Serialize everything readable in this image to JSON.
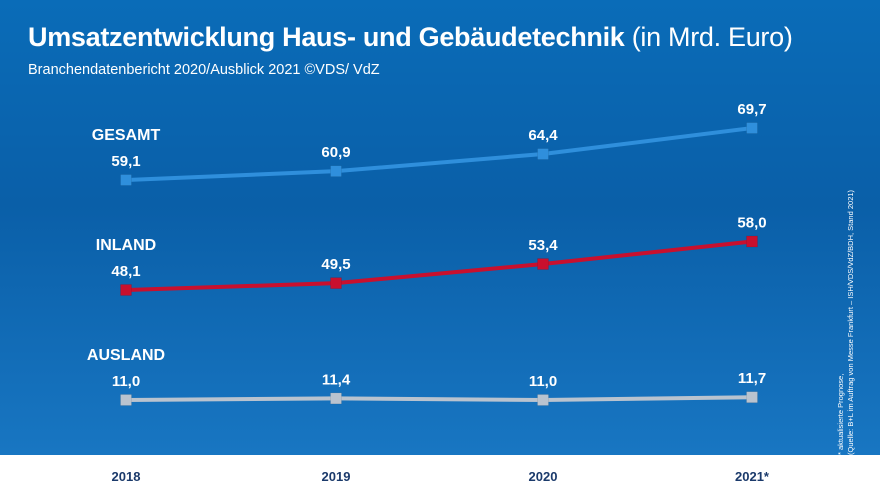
{
  "title": {
    "main": "Umsatzentwicklung Haus- und Gebäudetechnik",
    "unit": "(in Mrd. Euro)"
  },
  "subtitle": "Branchendatenbericht 2020/Ausblick 2021 ©VDS/ VdZ",
  "source_note": {
    "line1": "* aktualisierte Prognose,",
    "line2": "(Quelle: B+L im Auftrag von Messe Frankfurt – ISH/VDS/VdZ/BDH, Stand 2021)"
  },
  "colors": {
    "background": "#0a63ad",
    "gesamt": "#2f8fdc",
    "inland": "#c8102e",
    "ausland": "#b9c3cf",
    "axis_text": "#1b3a6b"
  },
  "chart_data": {
    "type": "line",
    "categories": [
      "2018",
      "2019",
      "2020",
      "2021*"
    ],
    "series": [
      {
        "name": "GESAMT",
        "values": [
          59.1,
          60.9,
          64.4,
          69.7
        ],
        "labels": [
          "59,1",
          "60,9",
          "64,4",
          "69,7"
        ]
      },
      {
        "name": "INLAND",
        "values": [
          48.1,
          49.5,
          53.4,
          58.0
        ],
        "labels": [
          "48,1",
          "49,5",
          "53,4",
          "58,0"
        ]
      },
      {
        "name": "AUSLAND",
        "values": [
          11.0,
          11.4,
          11.0,
          11.7
        ],
        "labels": [
          "11,0",
          "11,4",
          "11,0",
          "11,7"
        ]
      }
    ],
    "grid": false,
    "legend": "series names printed at the left above each line"
  }
}
